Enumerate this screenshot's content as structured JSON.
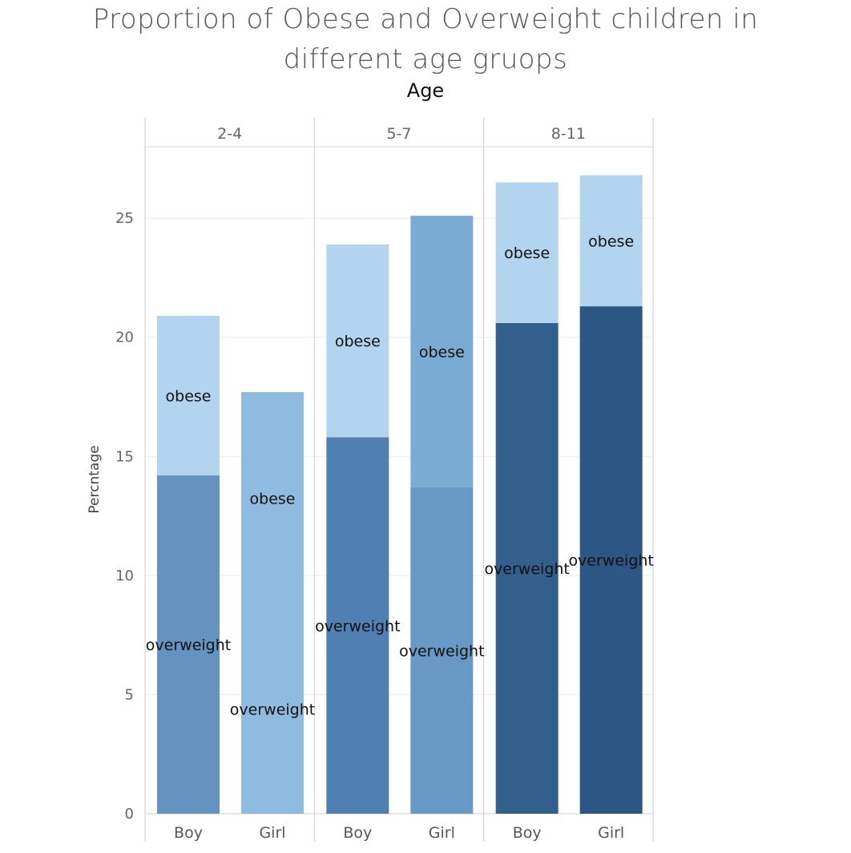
{
  "chart_data": {
    "type": "bar",
    "stacked": true,
    "title_lines": [
      "Proportion of Obese and Overweight children in",
      "different age gruops"
    ],
    "facet_label": "Age",
    "ylabel": "Percntage",
    "ylim": [
      0,
      28
    ],
    "yticks": [
      0,
      5,
      10,
      15,
      20,
      25
    ],
    "grid": true,
    "facets": [
      {
        "name": "2-4",
        "bars": [
          {
            "category": "Boy",
            "overweight": 14.2,
            "obese": 6.7,
            "overweight_color": "#6493bf",
            "obese_color": "#b2d4ee"
          },
          {
            "category": "Girl",
            "overweight": 8.8,
            "obese": 8.9,
            "overweight_color": "#90bbe0",
            "obese_color": "#90bbe0"
          }
        ]
      },
      {
        "name": "5-7",
        "bars": [
          {
            "category": "Boy",
            "overweight": 15.8,
            "obese": 8.1,
            "overweight_color": "#5080b2",
            "obese_color": "#b2d4ee"
          },
          {
            "category": "Girl",
            "overweight": 13.7,
            "obese": 11.4,
            "overweight_color": "#6898c4",
            "obese_color": "#7aabd3"
          }
        ]
      },
      {
        "name": "8-11",
        "bars": [
          {
            "category": "Boy",
            "overweight": 20.6,
            "obese": 5.9,
            "overweight_color": "#335f8c",
            "obese_color": "#b2d4ee"
          },
          {
            "category": "Girl",
            "overweight": 21.3,
            "obese": 5.5,
            "overweight_color": "#2c5784",
            "obese_color": "#b2d4ee"
          }
        ]
      }
    ],
    "segment_labels": {
      "lower": "overweight",
      "upper": "obese"
    }
  }
}
